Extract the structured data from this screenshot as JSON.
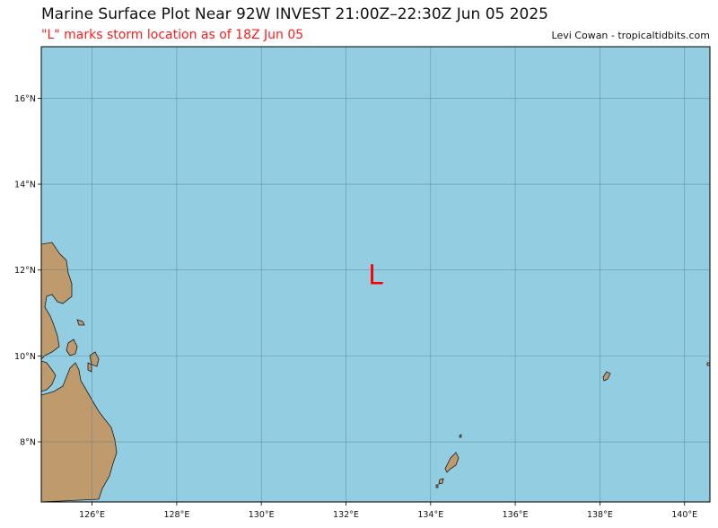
{
  "header": {
    "title": "Marine Surface Plot Near 92W INVEST 21:00Z–22:30Z Jun 05 2025",
    "subtitle": "\"L\" marks storm location as of 18Z Jun 05",
    "credit": "Levi Cowan - tropicaltidbits.com"
  },
  "map": {
    "ocean_color": "#92cde1",
    "land_color": "#bf9a6c",
    "lon_range": [
      124.8,
      140.6
    ],
    "lat_range": [
      6.6,
      17.2
    ],
    "lon_ticks": [
      {
        "value": 126,
        "label": "126°E"
      },
      {
        "value": 128,
        "label": "128°E"
      },
      {
        "value": 130,
        "label": "130°E"
      },
      {
        "value": 132,
        "label": "132°E"
      },
      {
        "value": 134,
        "label": "134°E"
      },
      {
        "value": 136,
        "label": "136°E"
      },
      {
        "value": 138,
        "label": "138°E"
      },
      {
        "value": 140,
        "label": "140°E"
      }
    ],
    "lat_ticks": [
      {
        "value": 16,
        "label": "16°N"
      },
      {
        "value": 14,
        "label": "14°N"
      },
      {
        "value": 12,
        "label": "12°N"
      },
      {
        "value": 10,
        "label": "10°N"
      },
      {
        "value": 8,
        "label": "8°N"
      }
    ],
    "storm_marker": {
      "symbol": "L",
      "lon": 132.7,
      "lat": 11.9,
      "color": "#ff0000"
    }
  }
}
